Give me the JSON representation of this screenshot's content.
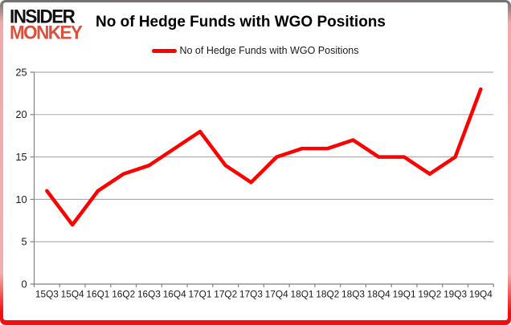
{
  "header": {
    "logo_line1": "INSIDER",
    "logo_line2": "MONKEY",
    "title": "No of Hedge Funds with WGO Positions"
  },
  "legend": {
    "label": "No of Hedge Funds with WGO Positions"
  },
  "chart_data": {
    "type": "line",
    "title": "No of Hedge Funds with WGO Positions",
    "categories": [
      "15Q3",
      "15Q4",
      "16Q1",
      "16Q2",
      "16Q3",
      "16Q4",
      "17Q1",
      "17Q2",
      "17Q3",
      "17Q4",
      "18Q1",
      "18Q2",
      "18Q3",
      "18Q4",
      "19Q1",
      "19Q2",
      "19Q3",
      "19Q4"
    ],
    "series": [
      {
        "name": "No of Hedge Funds with WGO Positions",
        "color": "#ff0000",
        "values": [
          11,
          7,
          11,
          13,
          14,
          16,
          18,
          14,
          12,
          15,
          16,
          16,
          17,
          15,
          15,
          13,
          15,
          23
        ]
      }
    ],
    "xlabel": "",
    "ylabel": "",
    "ylim": [
      0,
      25
    ],
    "yticks": [
      0,
      5,
      10,
      15,
      20,
      25
    ],
    "grid": true,
    "legend_position": "top-center"
  },
  "colors": {
    "line": "#ff0000",
    "grid": "#9d9d9d",
    "axis": "#808080",
    "text": "#1a1a1a",
    "logo-red": "#d9503c",
    "frame-top": "#6f6f6f",
    "frame-side": "#efa9a9",
    "frame-bottom": "#fb0c0c"
  }
}
